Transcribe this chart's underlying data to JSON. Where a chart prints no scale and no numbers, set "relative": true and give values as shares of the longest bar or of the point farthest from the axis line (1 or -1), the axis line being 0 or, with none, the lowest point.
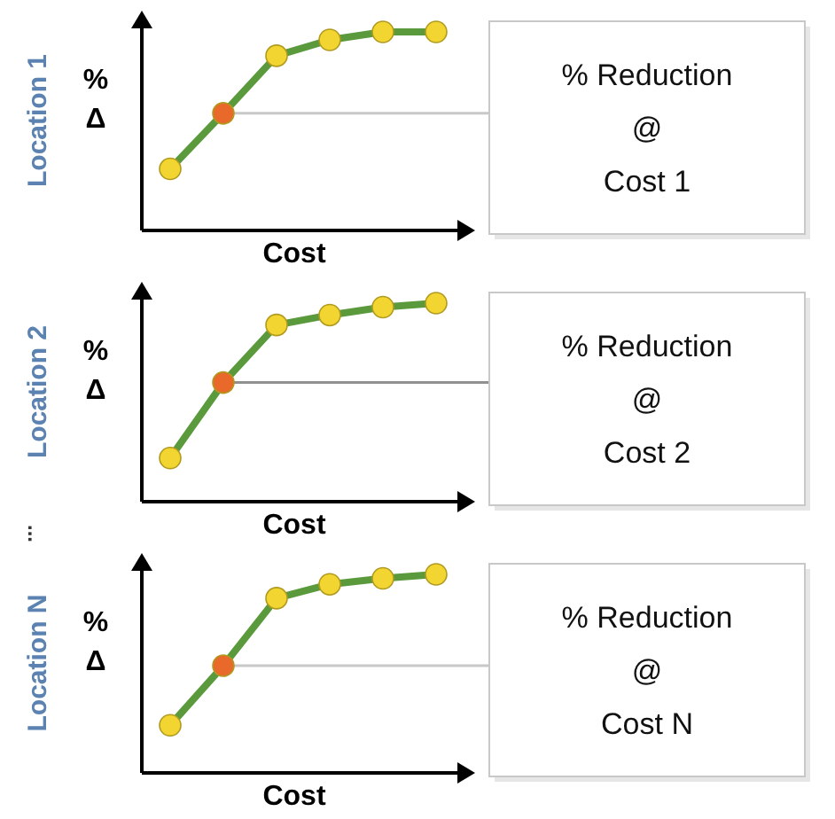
{
  "chart_data": [
    {
      "type": "line",
      "title": "Location 1",
      "xlabel": "Cost",
      "ylabel": "% Δ",
      "relative": true,
      "categories": [
        null,
        null,
        null,
        null,
        null,
        null
      ],
      "marker": "circle",
      "series": [
        {
          "color": "#5a9a3c",
          "colors": [
            "#f2d530",
            "#e8692a",
            "#f2d530",
            "#f2d530",
            "#f2d530",
            "#f2d530"
          ],
          "values": [
            0.31,
            0.59,
            0.88,
            0.96,
            1,
            1
          ]
        }
      ],
      "ref_lines": [
        {
          "axis": "y",
          "value": 0.59,
          "color": "#c8c8c8"
        }
      ]
    },
    {
      "type": "other",
      "annotations": [
        "% Reduction",
        "@",
        "Cost 1"
      ]
    },
    {
      "type": "line",
      "title": "Location 2",
      "xlabel": "Cost",
      "ylabel": "% Δ",
      "relative": true,
      "categories": [
        null,
        null,
        null,
        null,
        null,
        null
      ],
      "marker": "circle",
      "series": [
        {
          "color": "#5a9a3c",
          "colors": [
            "#f2d530",
            "#e8692a",
            "#f2d530",
            "#f2d530",
            "#f2d530",
            "#f2d530"
          ],
          "values": [
            0.22,
            0.6,
            0.89,
            0.94,
            0.98,
            1
          ]
        }
      ],
      "ref_lines": [
        {
          "axis": "y",
          "value": 0.6,
          "color": "#909090"
        }
      ],
      "annotations": [
        "..."
      ]
    },
    {
      "type": "other",
      "annotations": [
        "% Reduction",
        "@",
        "Cost 2"
      ]
    },
    {
      "type": "line",
      "title": "Location N",
      "xlabel": "Cost",
      "ylabel": "% Δ",
      "relative": true,
      "categories": [
        null,
        null,
        null,
        null,
        null,
        null
      ],
      "marker": "circle",
      "series": [
        {
          "color": "#5a9a3c",
          "colors": [
            "#f2d530",
            "#e8692a",
            "#f2d530",
            "#f2d530",
            "#f2d530",
            "#f2d530"
          ],
          "values": [
            0.24,
            0.54,
            0.88,
            0.95,
            0.98,
            1
          ]
        }
      ],
      "ref_lines": [
        {
          "axis": "y",
          "value": 0.54,
          "color": "#c8c8c8"
        }
      ]
    },
    {
      "type": "other",
      "annotations": [
        "% Reduction",
        "@",
        "Cost N"
      ]
    }
  ]
}
